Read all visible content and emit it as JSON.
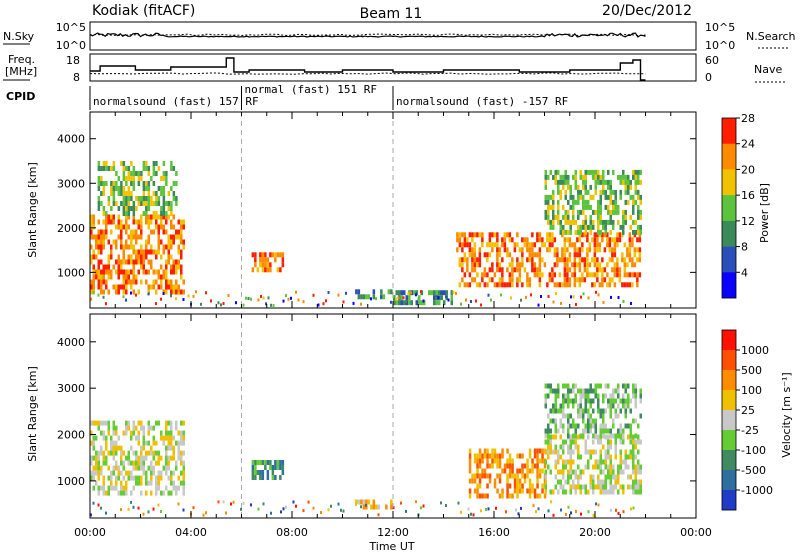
{
  "header": {
    "station": "Kodiak (fitACF)",
    "beam": "Beam 11",
    "date": "20/Dec/2012"
  },
  "summary_panels": {
    "nsky_label": "N.Sky",
    "nsearch_label": "N.Search",
    "nsky_ticks": [
      "10^5",
      "10^0"
    ],
    "nsearch_ticks": [
      "10^5",
      "10^0"
    ],
    "freq_label_top": "Freq.",
    "freq_label_unit": "[MHz]",
    "freq_ticks": [
      "18",
      "8"
    ],
    "nave_label": "Nave",
    "nave_ticks": [
      "60",
      "0"
    ],
    "cpid_label": "CPID"
  },
  "cpid_segments": [
    {
      "start": 0.0,
      "end": 6.0,
      "label": "normalsound (fast) 157 RF"
    },
    {
      "start": 6.0,
      "end": 12.0,
      "label": "normal (fast) 151 RF"
    },
    {
      "start": 12.0,
      "end": 22.0,
      "label": "normalsound (fast) -157 RF"
    }
  ],
  "chart_data": [
    {
      "type": "heatmap",
      "name": "power",
      "ylabel": "Slant Range [km]",
      "xlabel": "Time UT",
      "xlim": [
        0,
        24
      ],
      "ylim": [
        200,
        4600
      ],
      "x_ticks": [
        "00:00",
        "04:00",
        "08:00",
        "12:00",
        "16:00",
        "20:00",
        "00:00"
      ],
      "y_ticks": [
        1000,
        2000,
        3000,
        4000
      ],
      "colorbar_label": "Power [dB]",
      "colorbar_ticks": [
        "4",
        "8",
        "12",
        "16",
        "20",
        "24",
        "28"
      ],
      "colorbar_colors": [
        "#0a00ff",
        "#2a4fb8",
        "#3a8a5a",
        "#5cc43c",
        "#f2c200",
        "#ff8a00",
        "#ff1e00"
      ],
      "regions": [
        {
          "t0": 0.0,
          "t1": 3.7,
          "r0": 600,
          "r1": 2300,
          "level": 5
        },
        {
          "t0": 0.3,
          "t1": 3.4,
          "r0": 2300,
          "r1": 3500,
          "level": 3
        },
        {
          "t0": 6.4,
          "t1": 7.6,
          "r0": 1050,
          "r1": 1450,
          "level": 5
        },
        {
          "t0": 10.5,
          "t1": 11.9,
          "r0": 450,
          "r1": 620,
          "level": 2
        },
        {
          "t0": 12.0,
          "t1": 14.5,
          "r0": 300,
          "r1": 600,
          "level": 2
        },
        {
          "t0": 14.5,
          "t1": 21.8,
          "r0": 750,
          "r1": 1900,
          "level": 5
        },
        {
          "t0": 18.0,
          "t1": 21.8,
          "r0": 1900,
          "r1": 3300,
          "level": 3
        }
      ]
    },
    {
      "type": "heatmap",
      "name": "velocity",
      "ylabel": "Slant Range [km]",
      "xlabel": "Time UT",
      "xlim": [
        0,
        24
      ],
      "ylim": [
        200,
        4600
      ],
      "x_ticks": [
        "00:00",
        "04:00",
        "08:00",
        "12:00",
        "16:00",
        "20:00",
        "00:00"
      ],
      "y_ticks": [
        1000,
        2000,
        3000,
        4000
      ],
      "colorbar_label": "Velocity [m s⁻¹]",
      "colorbar_ticks": [
        "1000",
        "500",
        "100",
        "25",
        "-25",
        "-100",
        "-500",
        "-1000"
      ],
      "colorbar_colors": [
        "#1f3cc8",
        "#2f6fa0",
        "#3f8a60",
        "#66cc33",
        "#c8c8c8",
        "#f0c000",
        "#ff8c00",
        "#ff5000",
        "#ff1000"
      ],
      "regions": [
        {
          "t0": 0.0,
          "t1": 3.7,
          "r0": 700,
          "r1": 2300,
          "level": 4
        },
        {
          "t0": 6.4,
          "t1": 7.6,
          "r0": 1050,
          "r1": 1450,
          "level": 2
        },
        {
          "t0": 10.5,
          "t1": 11.9,
          "r0": 450,
          "r1": 600,
          "level": 5
        },
        {
          "t0": 15.0,
          "t1": 18.0,
          "r0": 700,
          "r1": 1700,
          "level": 6
        },
        {
          "t0": 18.0,
          "t1": 21.8,
          "r0": 800,
          "r1": 2000,
          "level": 4
        },
        {
          "t0": 18.0,
          "t1": 21.8,
          "r0": 2000,
          "r1": 3100,
          "level": 3
        }
      ]
    }
  ]
}
